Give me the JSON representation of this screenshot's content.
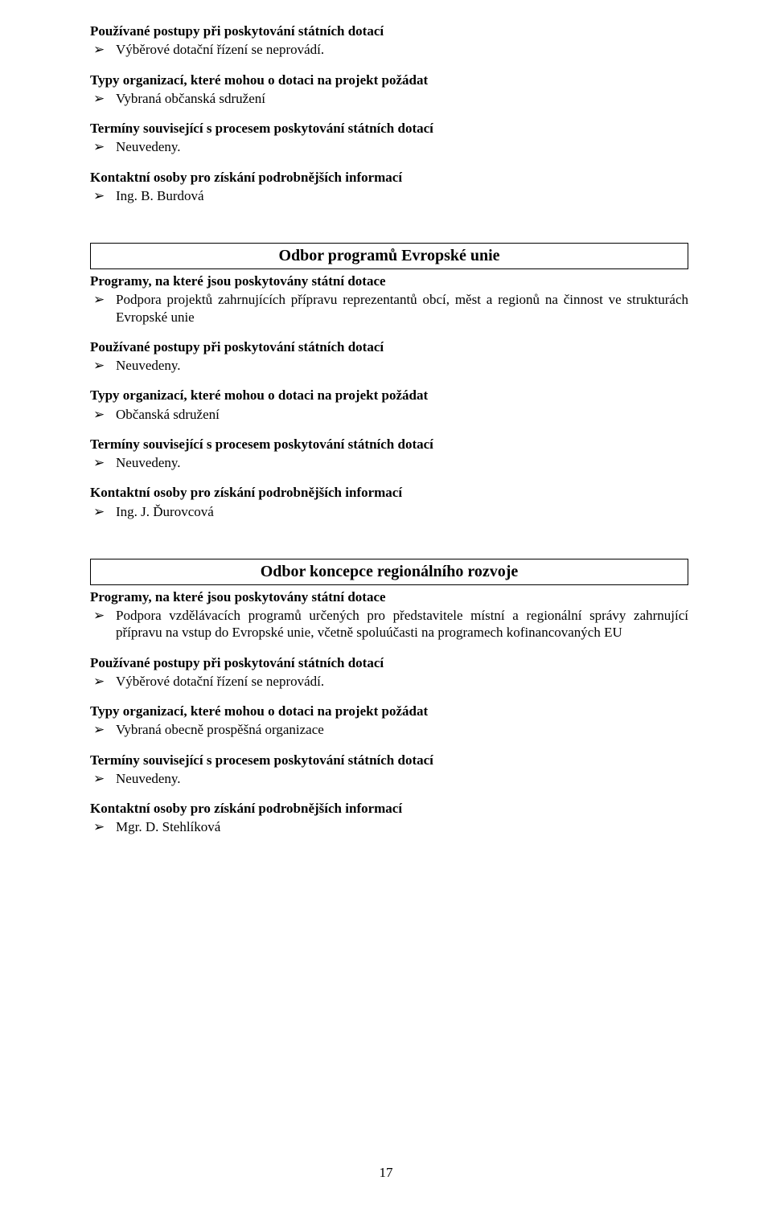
{
  "pageNumber": "17",
  "block1": {
    "headingA": "Používané postupy při poskytování státních dotací",
    "itemA1": "Výběrové dotační řízení se neprovádí.",
    "headingB": "Typy organizací, které mohou o dotaci na projekt požádat",
    "itemB1": "Vybraná občanská sdružení",
    "headingC": "Termíny související s procesem poskytování státních dotací",
    "itemC1": "Neuvedeny.",
    "headingD": "Kontaktní osoby pro získání podrobnějších informací",
    "itemD1": "Ing. B. Burdová"
  },
  "section2": {
    "boxTitle": "Odbor programů Evropské unie",
    "headingA": "Programy, na které jsou poskytovány státní dotace",
    "itemA1": "Podpora projektů zahrnujících přípravu reprezentantů obcí, měst a regionů na činnost ve strukturách Evropské unie",
    "headingB": "Používané postupy při poskytování státních dotací",
    "itemB1": "Neuvedeny.",
    "headingC": "Typy organizací, které mohou o dotaci na projekt požádat",
    "itemC1": "Občanská sdružení",
    "headingD": "Termíny související s procesem poskytování státních dotací",
    "itemD1": "Neuvedeny.",
    "headingE": "Kontaktní osoby pro získání podrobnějších informací",
    "itemE1": "Ing. J. Ďurovcová"
  },
  "section3": {
    "boxTitle": "Odbor koncepce regionálního rozvoje",
    "headingA": "Programy, na které jsou poskytovány státní dotace",
    "itemA1": "Podpora vzdělávacích programů určených pro představitele místní a regionální správy zahrnující přípravu na vstup do Evropské unie, včetně spoluúčasti na programech kofinancovaných EU",
    "headingB": "Používané postupy při poskytování státních dotací",
    "itemB1": "Výběrové dotační řízení se neprovádí.",
    "headingC": "Typy organizací, které mohou o dotaci na projekt požádat",
    "itemC1": "Vybraná obecně prospěšná organizace",
    "headingD": "Termíny související s procesem poskytování státních dotací",
    "itemD1": "Neuvedeny.",
    "headingE": "Kontaktní osoby pro získání podrobnějších informací",
    "itemE1": "Mgr. D. Stehlíková"
  }
}
